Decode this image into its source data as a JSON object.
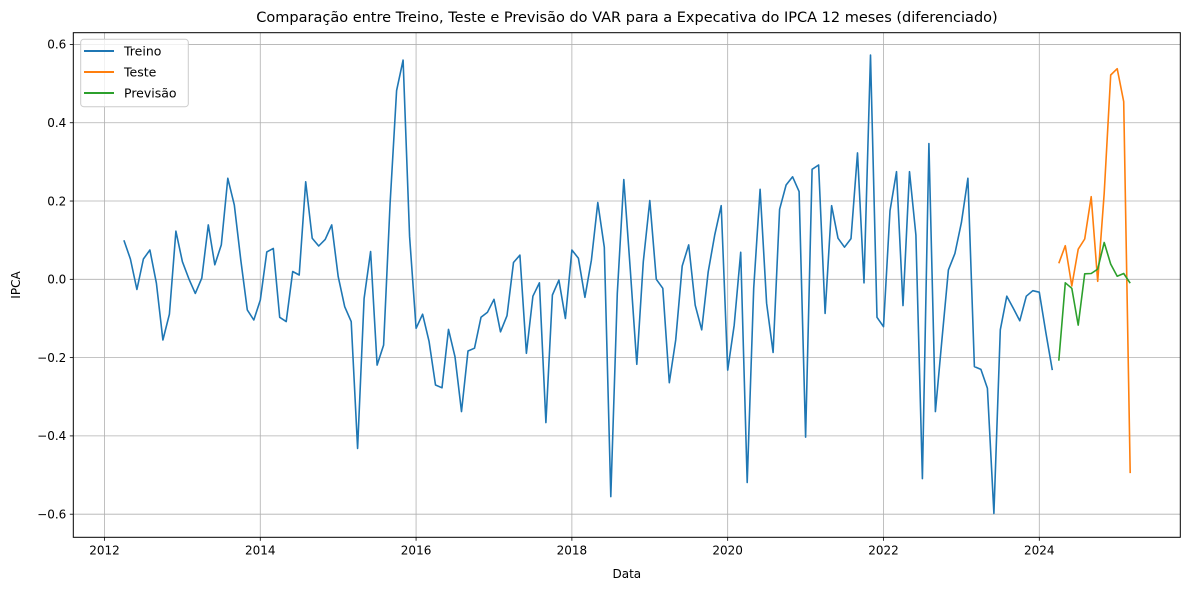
{
  "chart_data": {
    "type": "line",
    "title": "Comparação entre Treino, Teste e Previsão do VAR para a Expecativa do IPCA 12 meses (diferenciado)",
    "xlabel": "Data",
    "ylabel": "IPCA",
    "xlim": [
      2011.6,
      2025.81
    ],
    "ylim": [
      -0.659,
      0.63
    ],
    "x_ticks": [
      2012,
      2014,
      2016,
      2018,
      2020,
      2022,
      2024
    ],
    "x_tick_labels": [
      "2012",
      "2014",
      "2016",
      "2018",
      "2020",
      "2022",
      "2024"
    ],
    "y_ticks": [
      -0.6,
      -0.4,
      -0.2,
      0.0,
      0.2,
      0.4,
      0.6
    ],
    "y_tick_labels": [
      "−0.6",
      "−0.4",
      "−0.2",
      "0.0",
      "0.2",
      "0.4",
      "0.6"
    ],
    "grid": true,
    "legend_position": "top-left",
    "x_frequency": "monthly",
    "series": [
      {
        "name": "Treino",
        "color": "#1f77b4",
        "start": "2012-04",
        "values": [
          0.1,
          0.052,
          -0.026,
          0.052,
          0.075,
          -0.01,
          -0.155,
          -0.089,
          0.123,
          0.045,
          0.001,
          -0.036,
          0.003,
          0.139,
          0.037,
          0.088,
          0.258,
          0.19,
          0.049,
          -0.078,
          -0.104,
          -0.053,
          0.07,
          0.079,
          -0.097,
          -0.108,
          0.02,
          0.011,
          0.249,
          0.105,
          0.085,
          0.102,
          0.139,
          0.007,
          -0.07,
          -0.108,
          -0.432,
          -0.049,
          0.071,
          -0.219,
          -0.168,
          0.194,
          0.482,
          0.56,
          0.109,
          -0.125,
          -0.089,
          -0.159,
          -0.27,
          -0.277,
          -0.128,
          -0.198,
          -0.338,
          -0.183,
          -0.176,
          -0.097,
          -0.084,
          -0.051,
          -0.134,
          -0.093,
          0.043,
          0.062,
          -0.189,
          -0.043,
          -0.009,
          -0.366,
          -0.04,
          -0.002,
          -0.1,
          0.075,
          0.054,
          -0.046,
          0.049,
          0.196,
          0.082,
          -0.555,
          -0.036,
          0.255,
          0.024,
          -0.217,
          0.045,
          0.201,
          0.0,
          -0.023,
          -0.264,
          -0.155,
          0.034,
          0.088,
          -0.066,
          -0.129,
          0.019,
          0.113,
          0.188,
          -0.232,
          -0.117,
          0.069,
          -0.519,
          -0.023,
          0.23,
          -0.061,
          -0.187,
          0.179,
          0.241,
          0.262,
          0.224,
          -0.403,
          0.281,
          0.292,
          -0.087,
          0.188,
          0.105,
          0.082,
          0.104,
          0.323,
          -0.009,
          0.573,
          -0.097,
          -0.121,
          0.175,
          0.275,
          -0.067,
          0.275,
          0.113,
          -0.509,
          0.347,
          -0.338,
          -0.155,
          0.024,
          0.066,
          0.145,
          0.258,
          -0.223,
          -0.23,
          -0.278,
          -0.598,
          -0.129,
          -0.043,
          -0.074,
          -0.106,
          -0.043,
          -0.029,
          -0.033,
          -0.135,
          -0.232
        ]
      },
      {
        "name": "Teste",
        "color": "#ff7f0e",
        "start": "2024-04",
        "values": [
          0.041,
          0.086,
          -0.017,
          0.077,
          0.103,
          0.211,
          -0.005,
          0.22,
          0.522,
          0.538,
          0.454,
          -0.495
        ]
      },
      {
        "name": "Previsão",
        "color": "#2ca02c",
        "start": "2024-04",
        "values": [
          -0.208,
          -0.009,
          -0.023,
          -0.117,
          0.014,
          0.015,
          0.026,
          0.094,
          0.039,
          0.008,
          0.015,
          -0.01
        ]
      }
    ]
  }
}
